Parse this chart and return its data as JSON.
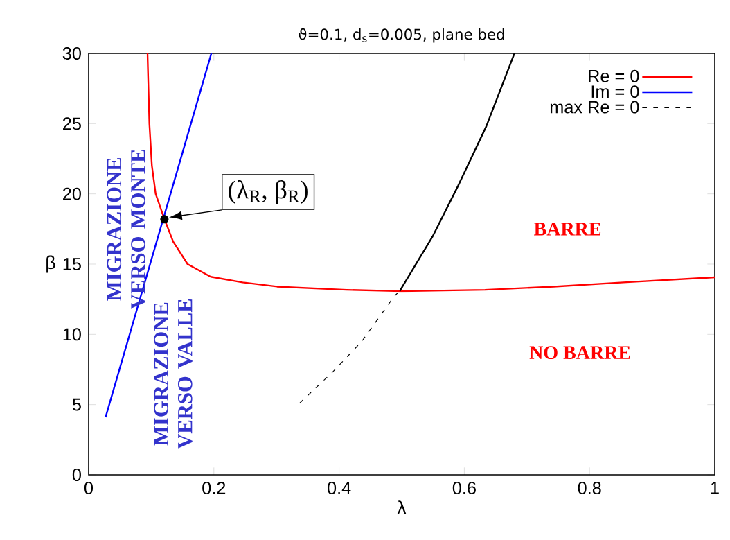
{
  "chart_data": {
    "type": "line",
    "title": "ϑ=0.1, d$_{s}$=0.005, plane bed",
    "xlabel": "λ",
    "ylabel": "β",
    "xlim": [
      0,
      1
    ],
    "ylim": [
      0,
      30
    ],
    "xticks": [
      0,
      0.2,
      0.4,
      0.6,
      0.8,
      1
    ],
    "yticks": [
      0,
      5,
      10,
      15,
      20,
      25,
      30
    ],
    "grid": false,
    "legend": "top right",
    "marker": "none",
    "series": [
      {
        "name": "Re = 0",
        "color": "#ff0000",
        "x": [
          0.094,
          0.097,
          0.101,
          0.107,
          0.121,
          0.135,
          0.158,
          0.195,
          0.246,
          0.301,
          0.412,
          0.5,
          0.633,
          0.743,
          0.854,
          1.0
        ],
        "values": [
          30,
          25,
          22,
          20,
          18.2,
          16.6,
          15,
          14.1,
          13.7,
          13.4,
          13.17,
          13.07,
          13.17,
          13.4,
          13.7,
          14.06
        ]
      },
      {
        "name": "Im = 0",
        "color": "#0000ff",
        "x": [
          0.027,
          0.196
        ],
        "values": [
          4.1,
          30
        ]
      },
      {
        "name": "max Re = 0",
        "color": "#000000",
        "line_style": "dashed",
        "x": [
          0.337,
          0.391,
          0.436,
          0.488,
          0.497
        ],
        "values": [
          5.1,
          7.38,
          9.49,
          12.71,
          13.1
        ]
      },
      {
        "color": "#000000",
        "line_style": "solid",
        "x": [
          0.497,
          0.549,
          0.59,
          0.635,
          0.68
        ],
        "values": [
          13.1,
          16.94,
          20.57,
          24.8,
          30
        ]
      }
    ],
    "annotations": [
      {
        "text": "(λ$_{R}$, β$_{R}$)",
        "x": 0.121,
        "y": 18.2
      },
      "MIGRAZIONE VERSO MONTE",
      "MIGRAZIONE VERSO VALLE",
      "BARRE",
      "NO BARRE"
    ]
  }
}
